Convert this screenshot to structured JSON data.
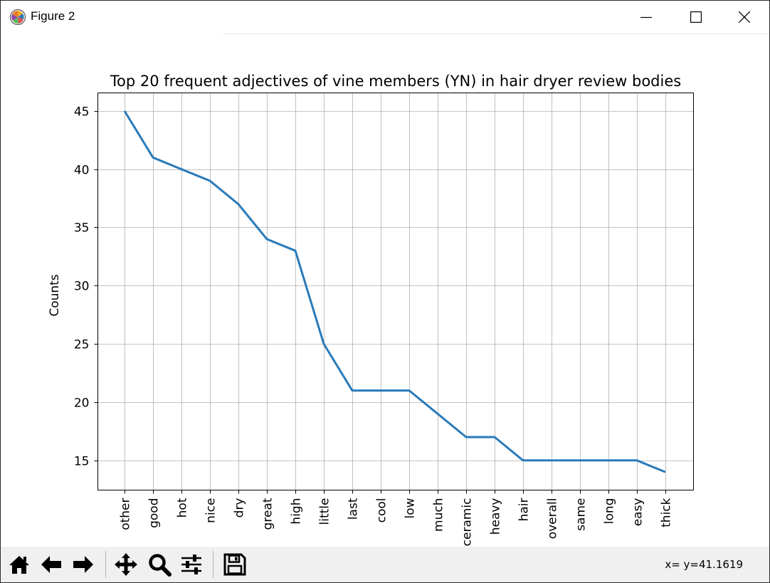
{
  "window": {
    "title": "Figure 2",
    "controls": {
      "minimize": "minimize-icon",
      "maximize": "maximize-icon",
      "close": "close-icon"
    }
  },
  "toolbar": {
    "buttons": [
      {
        "name": "home-button",
        "icon": "home-icon"
      },
      {
        "name": "back-button",
        "icon": "arrow-left-icon"
      },
      {
        "name": "forward-button",
        "icon": "arrow-right-icon"
      },
      {
        "name": "pan-button",
        "icon": "move-icon"
      },
      {
        "name": "zoom-button",
        "icon": "magnifier-icon"
      },
      {
        "name": "configure-subplots-button",
        "icon": "sliders-icon"
      },
      {
        "name": "save-button",
        "icon": "floppy-disk-icon"
      }
    ],
    "coordinates": "x= y=41.1619"
  },
  "chart_data": {
    "type": "line",
    "title": "Top 20 frequent adjectives of vine members (YN) in hair dryer review bodies",
    "xlabel": "",
    "ylabel": "Counts",
    "categories": [
      "other",
      "good",
      "hot",
      "nice",
      "dry",
      "great",
      "high",
      "little",
      "last",
      "cool",
      "low",
      "much",
      "ceramic",
      "heavy",
      "hair",
      "overall",
      "same",
      "long",
      "easy",
      "thick"
    ],
    "values": [
      45,
      41,
      40,
      39,
      37,
      34,
      33,
      25,
      21,
      21,
      21,
      19,
      17,
      17,
      15,
      15,
      15,
      15,
      15,
      14
    ],
    "yticks": [
      15,
      20,
      25,
      30,
      35,
      40,
      45
    ],
    "ylim": [
      12.45,
      46.55
    ],
    "grid": true,
    "line_color": "#2a7ab9"
  }
}
